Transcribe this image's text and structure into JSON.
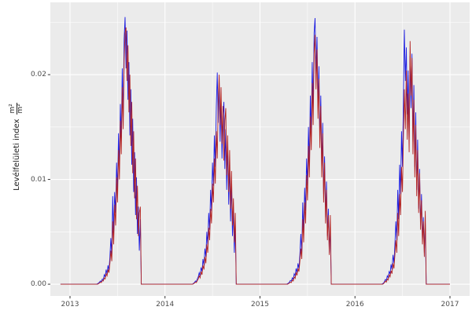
{
  "figure": {
    "background_color": "#FFFFFF",
    "panel_background_color": "#EBEBEB",
    "gridline_color": "#FFFFFF",
    "tick_mark_color": "#333333",
    "tick_label_color": "#4D4D4D",
    "axis_title_color": "#1A1A1A"
  },
  "chart_data": {
    "type": "line",
    "title": "",
    "xlabel": "",
    "ylabel": "Levélfelületi index",
    "unit_numerator": "m²",
    "unit_denominator": "m²",
    "legend": "none",
    "grid": "on",
    "x_axis": {
      "ticks": [
        2013,
        2014,
        2015,
        2016,
        2017
      ],
      "tick_labels": [
        "2013",
        "2014",
        "2015",
        "2016",
        "2017"
      ],
      "minor_ticks": [
        2013.5,
        2014.5,
        2015.5,
        2016.5
      ],
      "range_display": [
        2012.793,
        2017.207
      ]
    },
    "y_axis": {
      "ticks": [
        0,
        0.01,
        0.02
      ],
      "tick_labels": [
        "0.00",
        "0.01",
        "0.02"
      ],
      "minor_ticks": [
        0.005,
        0.015,
        0.025
      ],
      "range_display": [
        -0.00112,
        0.0269
      ]
    },
    "data_start_t": 2012.9,
    "data_end_t": 2017.0,
    "season_start_offset": 0.28,
    "season_dt": 0.01,
    "value_scale": 0.001,
    "series": [
      {
        "name": "series-blue",
        "color": "#1B1BE0",
        "seasons": {
          "2013": [
            0,
            0.05,
            0.1,
            0.2,
            0.3,
            0.25,
            0.5,
            0.4,
            0.9,
            0.7,
            1.4,
            1.0,
            1.8,
            1.3,
            2.6,
            4.4,
            2.8,
            8.4,
            4.6,
            8.8,
            6.8,
            11.6,
            9.0,
            14.4,
            11.0,
            17.2,
            13.8,
            20.6,
            16.0,
            23.4,
            25.5,
            20.6,
            24.2,
            17.6,
            21.2,
            14.2,
            18.6,
            11.4,
            15.8,
            8.8,
            12.6,
            6.6,
            10.2,
            4.8,
            7.4,
            3.2,
            6.2,
            0
          ],
          "2014": [
            0,
            0,
            0.1,
            0.15,
            0.3,
            0.25,
            0.5,
            0.7,
            1.1,
            0.8,
            1.6,
            1.2,
            2.4,
            1.8,
            3.4,
            2.6,
            5.0,
            3.8,
            6.8,
            5.2,
            9.0,
            7.0,
            11.6,
            9.4,
            14.2,
            11.2,
            17.0,
            20.2,
            15.4,
            19.2,
            13.6,
            17.8,
            12.0,
            16.0,
            17.4,
            11.0,
            14.8,
            9.0,
            13.2,
            7.6,
            11.4,
            6.0,
            9.6,
            4.6,
            7.0,
            3.0,
            5.6,
            0
          ],
          "2015": [
            0,
            0.05,
            0.1,
            0.2,
            0.35,
            0.3,
            0.6,
            0.45,
            1.0,
            0.8,
            1.5,
            1.1,
            2.0,
            1.5,
            2.8,
            4.8,
            3.0,
            7.8,
            4.8,
            9.2,
            7.0,
            12.0,
            9.4,
            15.0,
            11.6,
            18.0,
            14.2,
            21.2,
            16.8,
            24.0,
            25.4,
            20.2,
            23.6,
            17.0,
            20.8,
            13.8,
            18.0,
            11.0,
            15.4,
            8.6,
            12.2,
            6.4,
            9.8,
            4.6,
            7.2,
            3.0,
            5.4,
            0
          ],
          "2016": [
            0,
            0.05,
            0.1,
            0.25,
            0.45,
            0.35,
            0.8,
            0.6,
            1.2,
            1.0,
            1.9,
            1.4,
            2.8,
            2.0,
            3.8,
            6.0,
            4.2,
            9.0,
            6.2,
            11.4,
            8.6,
            14.6,
            11.2,
            18.0,
            24.3,
            19.4,
            22.6,
            16.2,
            20.4,
            14.0,
            21.8,
            16.8,
            22.0,
            13.6,
            19.0,
            11.2,
            16.4,
            9.0,
            13.8,
            7.2,
            11.0,
            5.6,
            8.6,
            4.2,
            6.4,
            3.0,
            5.8,
            0
          ]
        }
      },
      {
        "name": "series-red",
        "color": "#B22222",
        "seasons": {
          "2013": [
            0,
            0,
            0.05,
            0.1,
            0.2,
            0.15,
            0.35,
            0.3,
            0.6,
            0.5,
            1.0,
            0.8,
            1.4,
            1.1,
            2.0,
            3.2,
            2.2,
            6.0,
            3.8,
            7.6,
            5.6,
            10.2,
            7.8,
            12.8,
            10.0,
            15.6,
            12.4,
            18.8,
            14.8,
            21.4,
            24.0,
            24.5,
            19.4,
            22.8,
            16.4,
            20.0,
            13.2,
            17.4,
            10.6,
            14.6,
            8.2,
            12.0,
            6.2,
            9.4,
            4.6,
            6.8,
            7.4,
            0
          ],
          "2014": [
            0,
            0,
            0.05,
            0.1,
            0.2,
            0.15,
            0.35,
            0.5,
            0.8,
            0.6,
            1.2,
            0.9,
            1.8,
            1.4,
            2.6,
            2.0,
            3.8,
            3.0,
            5.4,
            4.2,
            7.2,
            5.8,
            9.6,
            7.8,
            12.0,
            9.6,
            14.6,
            12.0,
            17.2,
            20.0,
            15.2,
            18.8,
            13.4,
            17.0,
            11.8,
            15.6,
            16.8,
            10.4,
            14.2,
            8.8,
            12.8,
            7.2,
            10.8,
            5.6,
            8.2,
            4.0,
            6.8,
            0
          ],
          "2015": [
            0,
            0,
            0.05,
            0.1,
            0.2,
            0.15,
            0.4,
            0.3,
            0.7,
            0.55,
            1.1,
            0.85,
            1.5,
            1.2,
            2.2,
            3.4,
            2.4,
            6.2,
            4.0,
            7.8,
            5.8,
            10.4,
            8.0,
            13.2,
            10.2,
            16.0,
            12.8,
            19.2,
            15.2,
            22.0,
            23.8,
            18.6,
            22.4,
            15.8,
            19.6,
            13.0,
            17.0,
            10.2,
            14.4,
            7.8,
            11.6,
            5.8,
            9.0,
            4.2,
            6.6,
            2.8,
            6.6,
            0
          ],
          "2016": [
            0,
            0,
            0.05,
            0.15,
            0.3,
            0.2,
            0.5,
            0.4,
            0.9,
            0.7,
            1.3,
            1.0,
            2.0,
            1.5,
            2.8,
            4.2,
            3.0,
            6.8,
            4.6,
            8.6,
            6.6,
            11.2,
            8.8,
            14.0,
            18.6,
            14.8,
            20.4,
            13.8,
            18.2,
            12.6,
            23.2,
            18.0,
            21.6,
            12.4,
            17.6,
            10.2,
            15.2,
            8.4,
            12.8,
            6.8,
            10.6,
            5.2,
            8.0,
            3.8,
            6.0,
            2.6,
            7.0,
            0
          ]
        }
      }
    ]
  }
}
